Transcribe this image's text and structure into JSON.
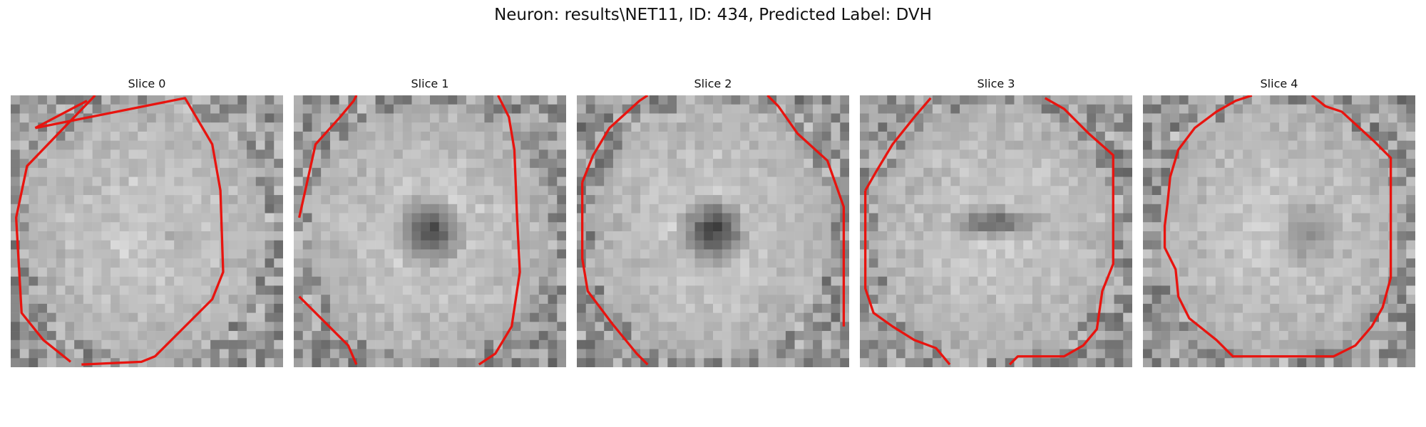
{
  "figure": {
    "title": "Neuron: results\\NET11, ID: 434, Predicted Label: DVH"
  },
  "panels": [
    {
      "title": "Slice 0",
      "interior": "bright",
      "center_darkness": 0.12,
      "contour": [
        [
          0.09,
          0.12
        ],
        [
          0.28,
          0.02
        ],
        [
          0.31,
          0.0
        ],
        [
          0.06,
          0.26
        ],
        [
          0.02,
          0.45
        ],
        [
          0.04,
          0.8
        ],
        [
          0.12,
          0.9
        ],
        [
          0.22,
          0.98
        ],
        [
          0.26,
          0.99
        ],
        [
          0.48,
          0.98
        ],
        [
          0.53,
          0.96
        ],
        [
          0.74,
          0.75
        ],
        [
          0.78,
          0.65
        ],
        [
          0.77,
          0.35
        ],
        [
          0.74,
          0.18
        ],
        [
          0.64,
          0.01
        ]
      ],
      "open_gaps": [
        [
          1,
          2
        ],
        [
          7,
          8
        ]
      ]
    },
    {
      "title": "Slice 1",
      "interior": "ring",
      "center_darkness": 0.85,
      "contour": [
        [
          0.02,
          0.45
        ],
        [
          0.08,
          0.18
        ],
        [
          0.17,
          0.08
        ],
        [
          0.22,
          0.02
        ],
        [
          0.23,
          0.0
        ],
        [
          0.75,
          0.0
        ],
        [
          0.79,
          0.08
        ],
        [
          0.81,
          0.2
        ],
        [
          0.82,
          0.45
        ],
        [
          0.83,
          0.65
        ],
        [
          0.8,
          0.85
        ],
        [
          0.74,
          0.95
        ],
        [
          0.68,
          0.99
        ],
        [
          0.23,
          0.99
        ],
        [
          0.2,
          0.92
        ],
        [
          0.02,
          0.74
        ]
      ],
      "open_gaps": [
        [
          4,
          5
        ],
        [
          12,
          13
        ],
        [
          15,
          0
        ]
      ]
    },
    {
      "title": "Slice 2",
      "interior": "ring",
      "center_darkness": 0.9,
      "contour": [
        [
          0.02,
          0.32
        ],
        [
          0.06,
          0.22
        ],
        [
          0.12,
          0.12
        ],
        [
          0.23,
          0.02
        ],
        [
          0.26,
          0.0
        ],
        [
          0.7,
          0.0
        ],
        [
          0.74,
          0.04
        ],
        [
          0.81,
          0.14
        ],
        [
          0.92,
          0.24
        ],
        [
          0.98,
          0.41
        ],
        [
          0.98,
          0.85
        ],
        [
          0.92,
          0.98
        ],
        [
          0.26,
          0.99
        ],
        [
          0.22,
          0.95
        ],
        [
          0.13,
          0.84
        ],
        [
          0.04,
          0.72
        ],
        [
          0.02,
          0.6
        ]
      ],
      "open_gaps": [
        [
          4,
          5
        ],
        [
          10,
          11
        ],
        [
          11,
          12
        ]
      ]
    },
    {
      "title": "Slice 3",
      "interior": "bar",
      "center_darkness": 0.65,
      "contour": [
        [
          0.02,
          0.35
        ],
        [
          0.06,
          0.28
        ],
        [
          0.12,
          0.18
        ],
        [
          0.2,
          0.08
        ],
        [
          0.26,
          0.01
        ],
        [
          0.68,
          0.01
        ],
        [
          0.75,
          0.05
        ],
        [
          0.84,
          0.14
        ],
        [
          0.93,
          0.22
        ],
        [
          0.93,
          0.62
        ],
        [
          0.89,
          0.72
        ],
        [
          0.87,
          0.86
        ],
        [
          0.82,
          0.92
        ],
        [
          0.75,
          0.96
        ],
        [
          0.58,
          0.96
        ],
        [
          0.55,
          0.99
        ],
        [
          0.33,
          0.99
        ],
        [
          0.28,
          0.93
        ],
        [
          0.2,
          0.9
        ],
        [
          0.12,
          0.85
        ],
        [
          0.05,
          0.8
        ],
        [
          0.02,
          0.71
        ]
      ],
      "open_gaps": [
        [
          4,
          5
        ],
        [
          15,
          16
        ]
      ]
    },
    {
      "title": "Slice 4",
      "interior": "bright",
      "center_darkness": 0.35,
      "contour": [
        [
          0.1,
          0.3
        ],
        [
          0.13,
          0.2
        ],
        [
          0.19,
          0.12
        ],
        [
          0.27,
          0.06
        ],
        [
          0.34,
          0.02
        ],
        [
          0.4,
          0.0
        ],
        [
          0.62,
          0.0
        ],
        [
          0.67,
          0.04
        ],
        [
          0.73,
          0.06
        ],
        [
          0.85,
          0.17
        ],
        [
          0.91,
          0.23
        ],
        [
          0.91,
          0.67
        ],
        [
          0.88,
          0.78
        ],
        [
          0.84,
          0.85
        ],
        [
          0.78,
          0.92
        ],
        [
          0.7,
          0.96
        ],
        [
          0.33,
          0.96
        ],
        [
          0.27,
          0.9
        ],
        [
          0.17,
          0.82
        ],
        [
          0.13,
          0.74
        ],
        [
          0.12,
          0.64
        ],
        [
          0.1,
          0.6
        ],
        [
          0.08,
          0.56
        ],
        [
          0.08,
          0.48
        ],
        [
          0.09,
          0.4
        ]
      ],
      "open_gaps": [
        [
          5,
          6
        ]
      ]
    }
  ]
}
